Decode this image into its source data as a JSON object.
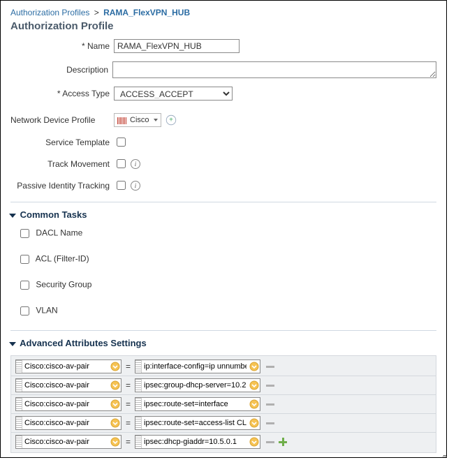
{
  "breadcrumb": {
    "root": "Authorization Profiles",
    "current": "RAMA_FlexVPN_HUB"
  },
  "title": "Authorization Profile",
  "form": {
    "name_label": "Name",
    "name_value": "RAMA_FlexVPN_HUB",
    "description_label": "Description",
    "description_value": "",
    "access_type_label": "Access Type",
    "access_type_value": "ACCESS_ACCEPT",
    "ndp_label": "Network Device Profile",
    "ndp_value": "Cisco",
    "service_template_label": "Service Template",
    "track_movement_label": "Track Movement",
    "passive_identity_label": "Passive Identity Tracking"
  },
  "sections": {
    "common_tasks": "Common Tasks",
    "advanced_attrs": "Advanced Attributes Settings"
  },
  "tasks": {
    "dacl": "DACL Name",
    "acl": "ACL  (Filter-ID)",
    "security_group": "Security Group",
    "vlan": "VLAN"
  },
  "attributes": [
    {
      "key": "Cisco:cisco-av-pair",
      "value": "ip:interface-config=ip unnumbe...",
      "showPlus": false
    },
    {
      "key": "Cisco:cisco-av-pair",
      "value": "ipsec:group-dhcp-server=10.2....",
      "showPlus": false
    },
    {
      "key": "Cisco:cisco-av-pair",
      "value": "ipsec:route-set=interface",
      "showPlus": false
    },
    {
      "key": "Cisco:cisco-av-pair",
      "value": "ipsec:route-set=access-list CL...",
      "showPlus": false
    },
    {
      "key": "Cisco:cisco-av-pair",
      "value": "ipsec:dhcp-giaddr=10.5.0.1",
      "showPlus": true
    }
  ],
  "side_id": "257688",
  "colors": {
    "accent": "#2b6ca3",
    "section": "#16324f",
    "grid_bg": "#eef0f2"
  }
}
